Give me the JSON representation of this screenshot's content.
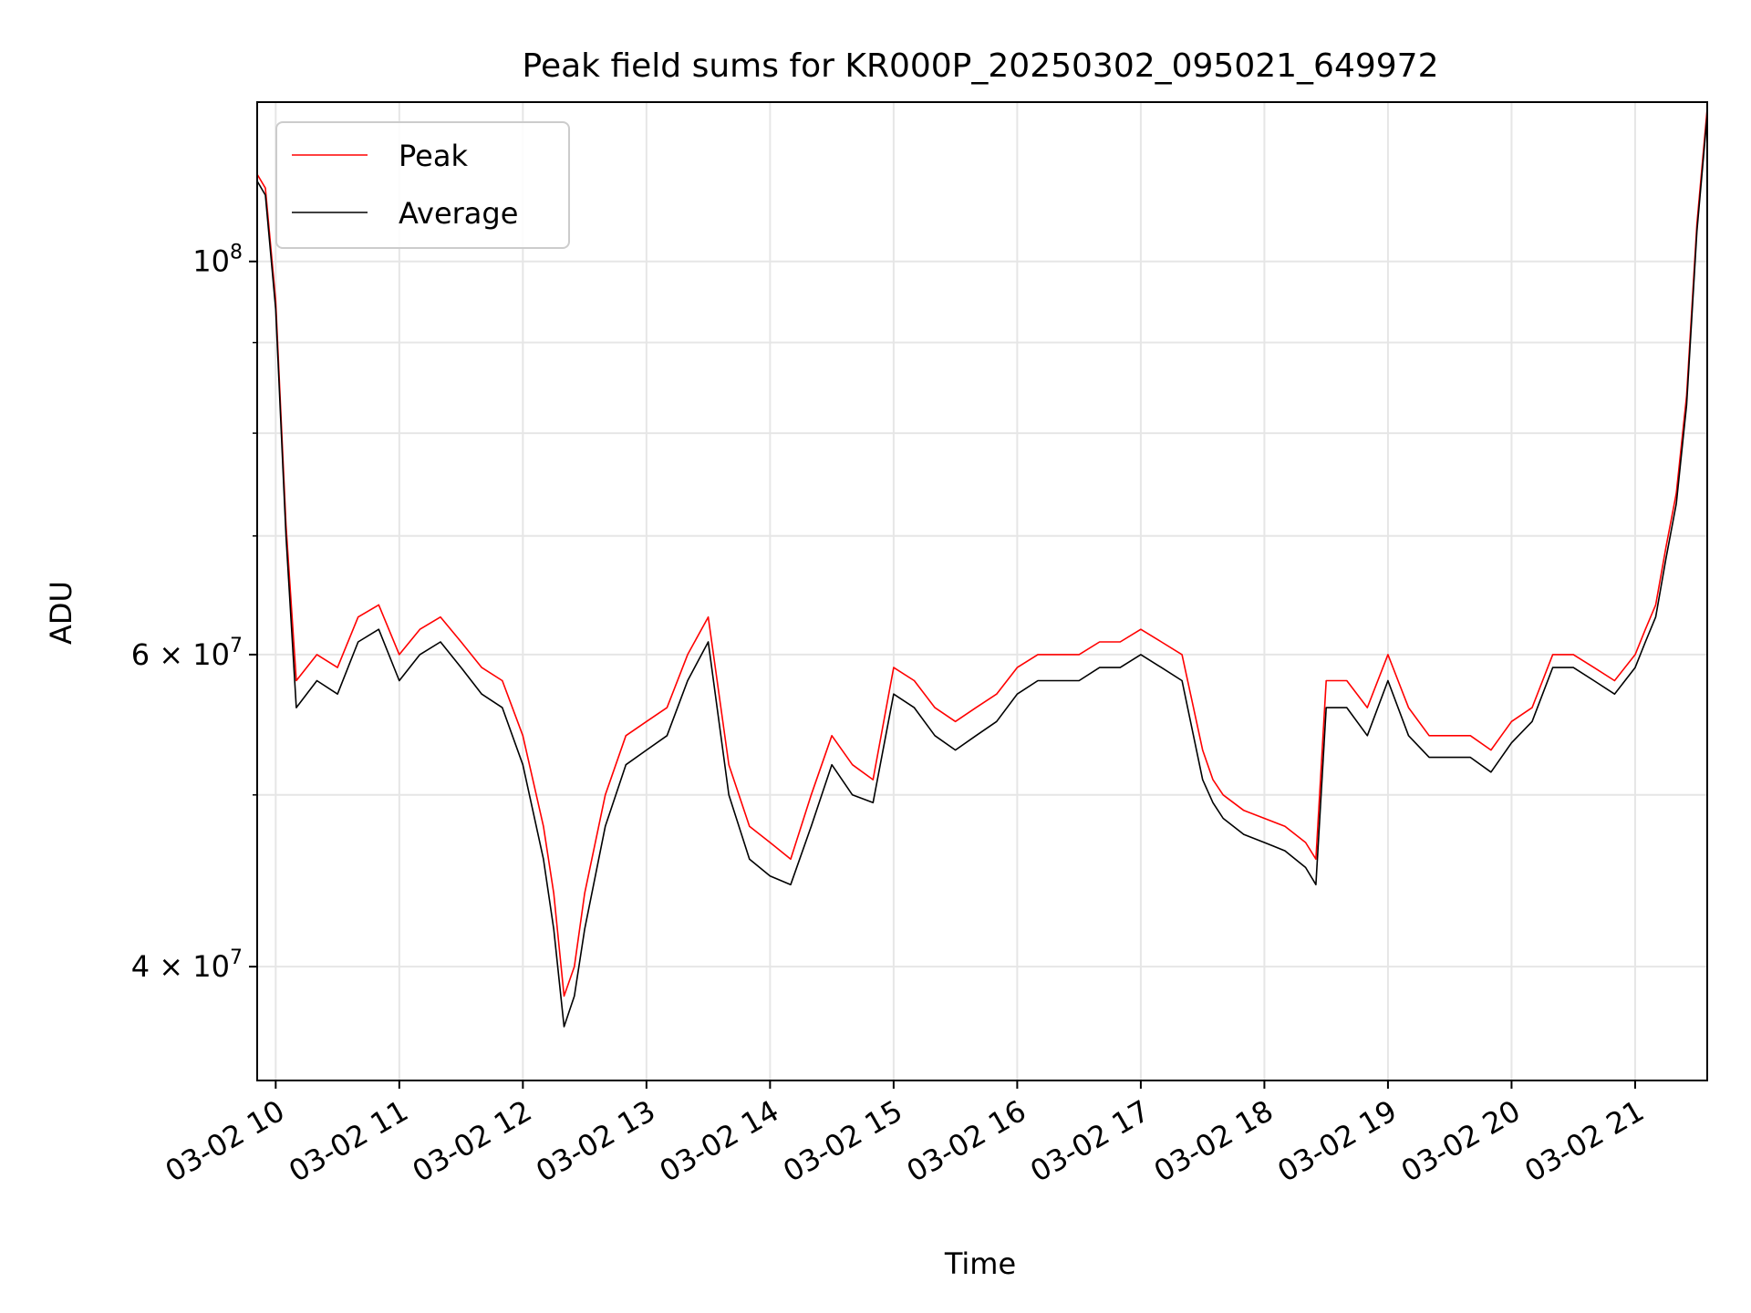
{
  "chart_data": {
    "type": "line",
    "title": "Peak field sums for KR000P_20250302_095021_649972",
    "xlabel": "Time",
    "ylabel": "ADU",
    "xaxis_kind": "datetime",
    "x_ticks": [
      "03-02 10",
      "03-02 11",
      "03-02 12",
      "03-02 13",
      "03-02 14",
      "03-02 15",
      "03-02 16",
      "03-02 17",
      "03-02 18",
      "03-02 19",
      "03-02 20",
      "03-02 21"
    ],
    "x_range": [
      "2025-03-02 09:51",
      "2025-03-02 21:35"
    ],
    "y_scale": "log",
    "y_ticks": [
      {
        "value": 40000000,
        "mantissa": "4",
        "exp": "7"
      },
      {
        "value": 60000000,
        "mantissa": "6",
        "exp": "7"
      },
      {
        "value": 100000000,
        "mantissa": "",
        "exp": "8"
      }
    ],
    "y_minor_ticks": [
      50000000,
      70000000,
      80000000,
      90000000
    ],
    "ylim": [
      34500000,
      123000000
    ],
    "grid": true,
    "legend_position": "upper-left",
    "series": [
      {
        "name": "Peak",
        "color": "#ff0000",
        "x": [
          "2025-03-02 09:51",
          "2025-03-02 09:55",
          "2025-03-02 10:00",
          "2025-03-02 10:05",
          "2025-03-02 10:10",
          "2025-03-02 10:20",
          "2025-03-02 10:30",
          "2025-03-02 10:40",
          "2025-03-02 10:50",
          "2025-03-02 11:00",
          "2025-03-02 11:10",
          "2025-03-02 11:20",
          "2025-03-02 11:30",
          "2025-03-02 11:40",
          "2025-03-02 11:50",
          "2025-03-02 12:00",
          "2025-03-02 12:10",
          "2025-03-02 12:15",
          "2025-03-02 12:20",
          "2025-03-02 12:25",
          "2025-03-02 12:30",
          "2025-03-02 12:40",
          "2025-03-02 12:50",
          "2025-03-02 13:00",
          "2025-03-02 13:10",
          "2025-03-02 13:20",
          "2025-03-02 13:30",
          "2025-03-02 13:40",
          "2025-03-02 13:50",
          "2025-03-02 14:00",
          "2025-03-02 14:10",
          "2025-03-02 14:20",
          "2025-03-02 14:30",
          "2025-03-02 14:40",
          "2025-03-02 14:50",
          "2025-03-02 15:00",
          "2025-03-02 15:10",
          "2025-03-02 15:20",
          "2025-03-02 15:30",
          "2025-03-02 15:40",
          "2025-03-02 15:50",
          "2025-03-02 16:00",
          "2025-03-02 16:10",
          "2025-03-02 16:20",
          "2025-03-02 16:30",
          "2025-03-02 16:40",
          "2025-03-02 16:50",
          "2025-03-02 17:00",
          "2025-03-02 17:10",
          "2025-03-02 17:20",
          "2025-03-02 17:30",
          "2025-03-02 17:35",
          "2025-03-02 17:40",
          "2025-03-02 17:50",
          "2025-03-02 18:00",
          "2025-03-02 18:10",
          "2025-03-02 18:20",
          "2025-03-02 18:25",
          "2025-03-02 18:30",
          "2025-03-02 18:40",
          "2025-03-02 18:50",
          "2025-03-02 19:00",
          "2025-03-02 19:10",
          "2025-03-02 19:20",
          "2025-03-02 19:30",
          "2025-03-02 19:40",
          "2025-03-02 19:50",
          "2025-03-02 20:00",
          "2025-03-02 20:10",
          "2025-03-02 20:20",
          "2025-03-02 20:30",
          "2025-03-02 20:40",
          "2025-03-02 20:50",
          "2025-03-02 21:00",
          "2025-03-02 21:05",
          "2025-03-02 21:10",
          "2025-03-02 21:15",
          "2025-03-02 21:20",
          "2025-03-02 21:25",
          "2025-03-02 21:30",
          "2025-03-02 21:35"
        ],
        "y": [
          112000000,
          110000000,
          95000000,
          71000000,
          58000000,
          60000000,
          59000000,
          63000000,
          64000000,
          60000000,
          62000000,
          63000000,
          61000000,
          59000000,
          58000000,
          54000000,
          48000000,
          44000000,
          38500000,
          40000000,
          44000000,
          50000000,
          54000000,
          55000000,
          56000000,
          60000000,
          63000000,
          52000000,
          48000000,
          47000000,
          46000000,
          50000000,
          54000000,
          52000000,
          51000000,
          59000000,
          58000000,
          56000000,
          55000000,
          56000000,
          57000000,
          59000000,
          60000000,
          60000000,
          60000000,
          61000000,
          61000000,
          62000000,
          61000000,
          60000000,
          53000000,
          51000000,
          50000000,
          49000000,
          48500000,
          48000000,
          47000000,
          46000000,
          58000000,
          58000000,
          56000000,
          60000000,
          56000000,
          54000000,
          54000000,
          54000000,
          53000000,
          55000000,
          56000000,
          60000000,
          60000000,
          59000000,
          58000000,
          60000000,
          62000000,
          64000000,
          69000000,
          74000000,
          84000000,
          105000000,
          122000000
        ]
      },
      {
        "name": "Average",
        "color": "#000000",
        "x": [
          "2025-03-02 09:51",
          "2025-03-02 09:55",
          "2025-03-02 10:00",
          "2025-03-02 10:05",
          "2025-03-02 10:10",
          "2025-03-02 10:20",
          "2025-03-02 10:30",
          "2025-03-02 10:40",
          "2025-03-02 10:50",
          "2025-03-02 11:00",
          "2025-03-02 11:10",
          "2025-03-02 11:20",
          "2025-03-02 11:30",
          "2025-03-02 11:40",
          "2025-03-02 11:50",
          "2025-03-02 12:00",
          "2025-03-02 12:10",
          "2025-03-02 12:15",
          "2025-03-02 12:20",
          "2025-03-02 12:25",
          "2025-03-02 12:30",
          "2025-03-02 12:40",
          "2025-03-02 12:50",
          "2025-03-02 13:00",
          "2025-03-02 13:10",
          "2025-03-02 13:20",
          "2025-03-02 13:30",
          "2025-03-02 13:40",
          "2025-03-02 13:50",
          "2025-03-02 14:00",
          "2025-03-02 14:10",
          "2025-03-02 14:20",
          "2025-03-02 14:30",
          "2025-03-02 14:40",
          "2025-03-02 14:50",
          "2025-03-02 15:00",
          "2025-03-02 15:10",
          "2025-03-02 15:20",
          "2025-03-02 15:30",
          "2025-03-02 15:40",
          "2025-03-02 15:50",
          "2025-03-02 16:00",
          "2025-03-02 16:10",
          "2025-03-02 16:20",
          "2025-03-02 16:30",
          "2025-03-02 16:40",
          "2025-03-02 16:50",
          "2025-03-02 17:00",
          "2025-03-02 17:10",
          "2025-03-02 17:20",
          "2025-03-02 17:30",
          "2025-03-02 17:35",
          "2025-03-02 17:40",
          "2025-03-02 17:50",
          "2025-03-02 18:00",
          "2025-03-02 18:10",
          "2025-03-02 18:20",
          "2025-03-02 18:25",
          "2025-03-02 18:30",
          "2025-03-02 18:40",
          "2025-03-02 18:50",
          "2025-03-02 19:00",
          "2025-03-02 19:10",
          "2025-03-02 19:20",
          "2025-03-02 19:30",
          "2025-03-02 19:40",
          "2025-03-02 19:50",
          "2025-03-02 20:00",
          "2025-03-02 20:10",
          "2025-03-02 20:20",
          "2025-03-02 20:30",
          "2025-03-02 20:40",
          "2025-03-02 20:50",
          "2025-03-02 21:00",
          "2025-03-02 21:05",
          "2025-03-02 21:10",
          "2025-03-02 21:15",
          "2025-03-02 21:20",
          "2025-03-02 21:25",
          "2025-03-02 21:30",
          "2025-03-02 21:35"
        ],
        "y": [
          111000000,
          109000000,
          94000000,
          70000000,
          56000000,
          58000000,
          57000000,
          61000000,
          62000000,
          58000000,
          60000000,
          61000000,
          59000000,
          57000000,
          56000000,
          52000000,
          46000000,
          42000000,
          37000000,
          38500000,
          42000000,
          48000000,
          52000000,
          53000000,
          54000000,
          58000000,
          61000000,
          50000000,
          46000000,
          45000000,
          44500000,
          48000000,
          52000000,
          50000000,
          49500000,
          57000000,
          56000000,
          54000000,
          53000000,
          54000000,
          55000000,
          57000000,
          58000000,
          58000000,
          58000000,
          59000000,
          59000000,
          60000000,
          59000000,
          58000000,
          51000000,
          49500000,
          48500000,
          47500000,
          47000000,
          46500000,
          45500000,
          44500000,
          56000000,
          56000000,
          54000000,
          58000000,
          54000000,
          52500000,
          52500000,
          52500000,
          51500000,
          53500000,
          55000000,
          59000000,
          59000000,
          58000000,
          57000000,
          59000000,
          61000000,
          63000000,
          68000000,
          73000000,
          83000000,
          104000000,
          121000000
        ]
      }
    ]
  }
}
